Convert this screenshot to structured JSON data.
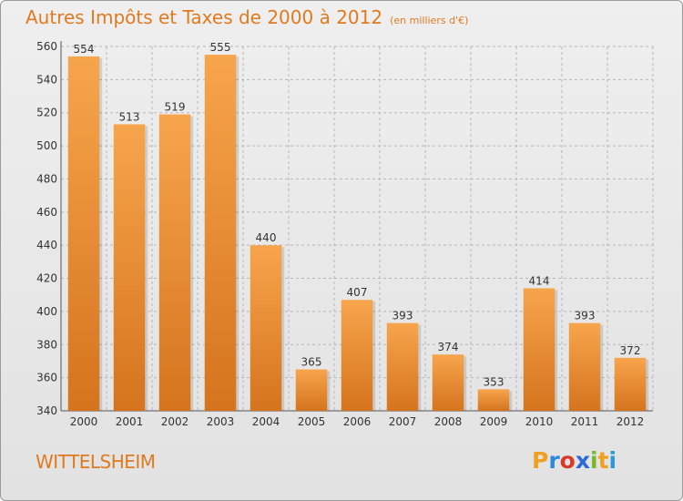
{
  "header": {
    "title": "Autres Impôts et Taxes de 2000 à 2012",
    "subtitle": "(en milliers d'€)"
  },
  "footer": {
    "place": "WITTELSHEIM",
    "logo_letters": [
      "P",
      "r",
      "o",
      "x",
      "i",
      "t",
      "i"
    ],
    "logo_colors": [
      "#f0a020",
      "#2a8bd8",
      "#d83a2a",
      "#2a6ad8",
      "#78b828",
      "#f0a020",
      "#2a9bd8"
    ]
  },
  "colors": {
    "accent": "#e07a1f",
    "bar_light": "#f7a54d",
    "bar_dark": "#d5741d",
    "grid": "#b7b7b7"
  },
  "chart_data": {
    "type": "bar",
    "categories": [
      "2000",
      "2001",
      "2002",
      "2003",
      "2004",
      "2005",
      "2006",
      "2007",
      "2008",
      "2009",
      "2010",
      "2011",
      "2012"
    ],
    "values": [
      554,
      513,
      519,
      555,
      440,
      365,
      407,
      393,
      374,
      353,
      414,
      393,
      372
    ],
    "ylim": [
      340,
      560
    ],
    "yticks": [
      340,
      360,
      380,
      400,
      420,
      440,
      460,
      480,
      500,
      520,
      540,
      560
    ],
    "grid": true,
    "data_labels": true
  }
}
